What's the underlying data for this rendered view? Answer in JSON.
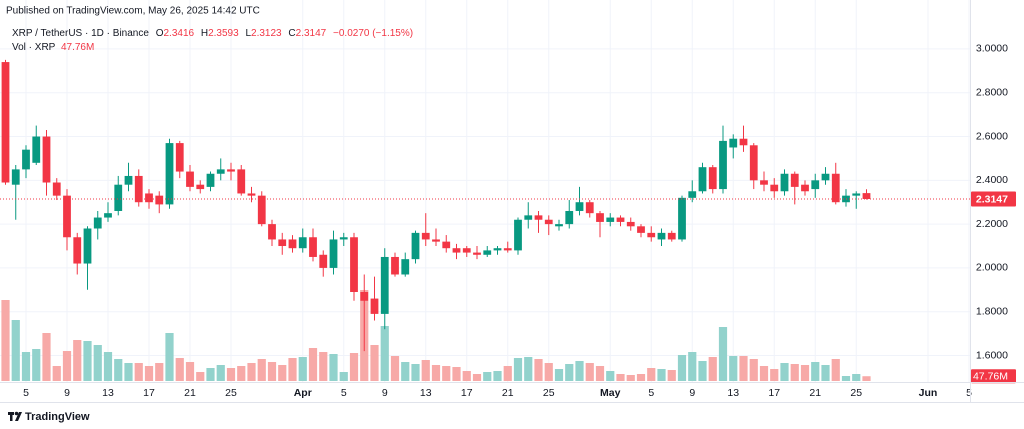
{
  "chart_data": {
    "type": "candlestick",
    "publisher_note": "Published on TradingView.com, May 26, 2025 14:42 UTC",
    "symbol": "XRP / TetherUS · 1D · Binance",
    "ohlc_labels": [
      "O",
      "H",
      "L",
      "C"
    ],
    "change_label": "−0.0270 (−1.15%)",
    "volume_title": "Vol · XRP",
    "last_volume_label": "47.76M",
    "brand": "TradingView",
    "x": [
      "Mar 3",
      "Mar 4",
      "Mar 5",
      "Mar 6",
      "Mar 7",
      "Mar 8",
      "Mar 9",
      "Mar 10",
      "Mar 11",
      "Mar 12",
      "Mar 13",
      "Mar 14",
      "Mar 15",
      "Mar 16",
      "Mar 17",
      "Mar 18",
      "Mar 19",
      "Mar 20",
      "Mar 21",
      "Mar 22",
      "Mar 23",
      "Mar 24",
      "Mar 25",
      "Mar 26",
      "Mar 27",
      "Mar 28",
      "Mar 29",
      "Mar 30",
      "Mar 31",
      "Apr 1",
      "Apr 2",
      "Apr 3",
      "Apr 4",
      "Apr 5",
      "Apr 6",
      "Apr 7",
      "Apr 8",
      "Apr 9",
      "Apr 10",
      "Apr 11",
      "Apr 12",
      "Apr 13",
      "Apr 14",
      "Apr 15",
      "Apr 16",
      "Apr 17",
      "Apr 18",
      "Apr 19",
      "Apr 20",
      "Apr 21",
      "Apr 22",
      "Apr 23",
      "Apr 24",
      "Apr 25",
      "Apr 26",
      "Apr 27",
      "Apr 28",
      "Apr 29",
      "Apr 30",
      "May 1",
      "May 2",
      "May 3",
      "May 4",
      "May 5",
      "May 6",
      "May 7",
      "May 8",
      "May 9",
      "May 10",
      "May 11",
      "May 12",
      "May 13",
      "May 14",
      "May 15",
      "May 16",
      "May 17",
      "May 18",
      "May 19",
      "May 20",
      "May 21",
      "May 22",
      "May 23",
      "May 24",
      "May 25",
      "May 26"
    ],
    "open": [
      2.94,
      2.38,
      2.45,
      2.48,
      2.6,
      2.39,
      2.33,
      2.14,
      2.02,
      2.18,
      2.23,
      2.26,
      2.38,
      2.42,
      2.34,
      2.33,
      2.29,
      2.57,
      2.44,
      2.38,
      2.37,
      2.43,
      2.45,
      2.45,
      2.34,
      2.33,
      2.2,
      2.13,
      2.13,
      2.09,
      2.14,
      2.06,
      2.0,
      2.13,
      2.14,
      1.89,
      1.86,
      1.79,
      2.05,
      1.97,
      2.04,
      2.16,
      2.13,
      2.12,
      2.09,
      2.09,
      2.07,
      2.06,
      2.08,
      2.09,
      2.08,
      2.22,
      2.24,
      2.22,
      2.19,
      2.2,
      2.26,
      2.3,
      2.25,
      2.21,
      2.23,
      2.21,
      2.19,
      2.16,
      2.13,
      2.16,
      2.13,
      2.32,
      2.35,
      2.46,
      2.36,
      2.55,
      2.59,
      2.56,
      2.4,
      2.38,
      2.35,
      2.43,
      2.38,
      2.36,
      2.4,
      2.43,
      2.3,
      2.33,
      2.3416
    ],
    "high": [
      2.95,
      2.47,
      2.56,
      2.65,
      2.63,
      2.41,
      2.36,
      2.16,
      2.19,
      2.26,
      2.3,
      2.42,
      2.48,
      2.45,
      2.36,
      2.35,
      2.59,
      2.58,
      2.47,
      2.4,
      2.44,
      2.5,
      2.48,
      2.47,
      2.37,
      2.35,
      2.22,
      2.16,
      2.15,
      2.18,
      2.18,
      2.08,
      2.17,
      2.16,
      2.16,
      1.97,
      1.96,
      2.09,
      2.07,
      2.07,
      2.17,
      2.25,
      2.18,
      2.15,
      2.11,
      2.1,
      2.1,
      2.1,
      2.1,
      2.12,
      2.23,
      2.3,
      2.26,
      2.24,
      2.22,
      2.31,
      2.37,
      2.31,
      2.26,
      2.25,
      2.24,
      2.23,
      2.2,
      2.19,
      2.18,
      2.17,
      2.33,
      2.4,
      2.48,
      2.47,
      2.65,
      2.61,
      2.65,
      2.57,
      2.44,
      2.41,
      2.45,
      2.44,
      2.4,
      2.43,
      2.46,
      2.48,
      2.36,
      2.35,
      2.3593
    ],
    "low": [
      2.38,
      2.22,
      2.41,
      2.47,
      2.33,
      2.31,
      2.08,
      1.97,
      1.9,
      2.13,
      2.21,
      2.24,
      2.35,
      2.28,
      2.27,
      2.25,
      2.27,
      2.41,
      2.35,
      2.34,
      2.35,
      2.4,
      2.4,
      2.33,
      2.3,
      2.19,
      2.1,
      2.06,
      2.07,
      2.07,
      2.03,
      1.96,
      1.97,
      2.1,
      1.85,
      1.62,
      1.76,
      1.72,
      1.96,
      1.96,
      2.02,
      2.1,
      2.1,
      2.07,
      2.04,
      2.05,
      2.04,
      2.05,
      2.06,
      2.07,
      2.06,
      2.18,
      2.16,
      2.15,
      2.17,
      2.18,
      2.24,
      2.23,
      2.14,
      2.19,
      2.19,
      2.17,
      2.14,
      2.12,
      2.1,
      2.12,
      2.12,
      2.3,
      2.34,
      2.34,
      2.34,
      2.5,
      2.53,
      2.36,
      2.35,
      2.32,
      2.33,
      2.29,
      2.33,
      2.32,
      2.38,
      2.29,
      2.28,
      2.27,
      2.3123
    ],
    "close": [
      2.39,
      2.45,
      2.54,
      2.6,
      2.39,
      2.33,
      2.14,
      2.02,
      2.18,
      2.23,
      2.25,
      2.38,
      2.42,
      2.3,
      2.3,
      2.29,
      2.57,
      2.44,
      2.37,
      2.36,
      2.43,
      2.45,
      2.44,
      2.34,
      2.33,
      2.2,
      2.13,
      2.1,
      2.09,
      2.14,
      2.05,
      2.0,
      2.13,
      2.14,
      1.89,
      1.85,
      1.79,
      2.05,
      1.97,
      2.04,
      2.16,
      2.13,
      2.12,
      2.09,
      2.07,
      2.07,
      2.06,
      2.08,
      2.09,
      2.08,
      2.22,
      2.24,
      2.22,
      2.2,
      2.2,
      2.26,
      2.3,
      2.25,
      2.21,
      2.23,
      2.21,
      2.19,
      2.16,
      2.14,
      2.16,
      2.13,
      2.32,
      2.35,
      2.46,
      2.36,
      2.58,
      2.59,
      2.56,
      2.4,
      2.38,
      2.35,
      2.43,
      2.37,
      2.35,
      2.4,
      2.43,
      2.3,
      2.33,
      2.34,
      2.3147
    ],
    "volume": [
      810000000,
      610000000,
      290000000,
      320000000,
      480000000,
      150000000,
      300000000,
      410000000,
      400000000,
      360000000,
      290000000,
      220000000,
      180000000,
      180000000,
      150000000,
      180000000,
      480000000,
      230000000,
      190000000,
      90000000,
      130000000,
      160000000,
      130000000,
      150000000,
      180000000,
      220000000,
      190000000,
      160000000,
      230000000,
      240000000,
      330000000,
      290000000,
      270000000,
      90000000,
      280000000,
      910000000,
      360000000,
      550000000,
      250000000,
      190000000,
      170000000,
      210000000,
      160000000,
      150000000,
      140000000,
      100000000,
      70000000,
      90000000,
      100000000,
      150000000,
      230000000,
      240000000,
      220000000,
      180000000,
      120000000,
      170000000,
      200000000,
      180000000,
      150000000,
      100000000,
      70000000,
      60000000,
      70000000,
      130000000,
      120000000,
      110000000,
      260000000,
      290000000,
      200000000,
      240000000,
      540000000,
      250000000,
      250000000,
      220000000,
      150000000,
      120000000,
      180000000,
      170000000,
      160000000,
      190000000,
      160000000,
      220000000,
      50000000,
      70000000,
      47760000
    ],
    "up_color": "#089981",
    "down_color": "#f23645",
    "volume_up_color": "#92d2cc",
    "volume_down_color": "#f7a9a7",
    "ylim": [
      1.479,
      3.123
    ],
    "yticks": [
      {
        "value": 1.6,
        "label": "1.6000"
      },
      {
        "value": 1.8,
        "label": "1.8000"
      },
      {
        "value": 2.0,
        "label": "2.0000"
      },
      {
        "value": 2.2,
        "label": "2.2000"
      },
      {
        "value": 2.4,
        "label": "2.4000"
      },
      {
        "value": 2.6,
        "label": "2.6000"
      },
      {
        "value": 2.8,
        "label": "2.8000"
      },
      {
        "value": 3.0,
        "label": "3.0000"
      }
    ],
    "xlim": [
      "Mar 3",
      "Jun 5"
    ],
    "xticks": [
      {
        "value": "Mar 5",
        "label": "5"
      },
      {
        "value": "Mar 9",
        "label": "9"
      },
      {
        "value": "Mar 13",
        "label": "13"
      },
      {
        "value": "Mar 17",
        "label": "17"
      },
      {
        "value": "Mar 21",
        "label": "21"
      },
      {
        "value": "Mar 25",
        "label": "25"
      },
      {
        "value": "Apr 1",
        "label": "Apr"
      },
      {
        "value": "Apr 5",
        "label": "5"
      },
      {
        "value": "Apr 9",
        "label": "9"
      },
      {
        "value": "Apr 13",
        "label": "13"
      },
      {
        "value": "Apr 17",
        "label": "17"
      },
      {
        "value": "Apr 21",
        "label": "21"
      },
      {
        "value": "Apr 25",
        "label": "25"
      },
      {
        "value": "May 1",
        "label": "May"
      },
      {
        "value": "May 5",
        "label": "5"
      },
      {
        "value": "May 9",
        "label": "9"
      },
      {
        "value": "May 13",
        "label": "13"
      },
      {
        "value": "May 17",
        "label": "17"
      },
      {
        "value": "May 21",
        "label": "21"
      },
      {
        "value": "May 25",
        "label": "25"
      },
      {
        "value": "Jun 1",
        "label": "Jun"
      },
      {
        "value": "Jun 5",
        "label": "5"
      }
    ],
    "grid": true
  }
}
